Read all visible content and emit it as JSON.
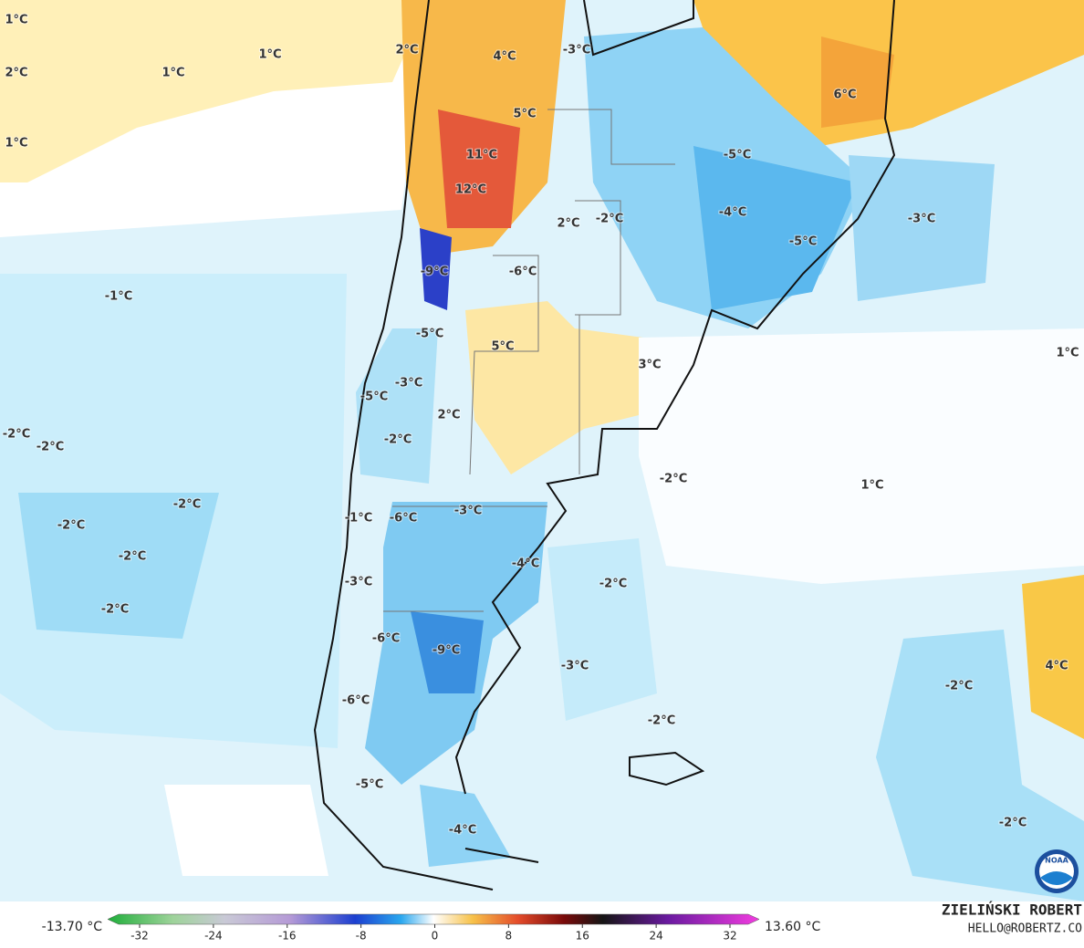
{
  "map": {
    "labels": [
      "1°C",
      "2°C",
      "1°C",
      "1°C",
      "1°C",
      "2°C",
      "-3°C",
      "4°C",
      "5°C",
      "6°C",
      "11°C",
      "-5°C",
      "12°C",
      "2°C",
      "-2°C",
      "-4°C",
      "-3°C",
      "-5°C",
      "-9°C",
      "-6°C",
      "-1°C",
      "-5°C",
      "5°C",
      "3°C",
      "1°C",
      "-3°C",
      "-5°C",
      "2°C",
      "-2°C",
      "-2°C",
      "-2°C",
      "-2°C",
      "1°C",
      "-2°C",
      "-1°C",
      "-6°C",
      "-3°C",
      "-2°C",
      "-2°C",
      "-4°C",
      "-2°C",
      "-3°C",
      "-2°C",
      "-6°C",
      "-9°C",
      "-3°C",
      "4°C",
      "-2°C",
      "-6°C",
      "-2°C",
      "-5°C",
      "-4°C",
      "-2°C"
    ]
  },
  "colorbar": {
    "min_label": "-13.70 °C",
    "max_label": "13.60 °C",
    "ticks": [
      -32,
      -24,
      -16,
      -8,
      0,
      8,
      16,
      24,
      32
    ]
  },
  "credit": {
    "author": "ZIELIŃSKI ROBERT",
    "contact": "HELLO@ROBERTZ.CO"
  },
  "logo": "NOAA"
}
